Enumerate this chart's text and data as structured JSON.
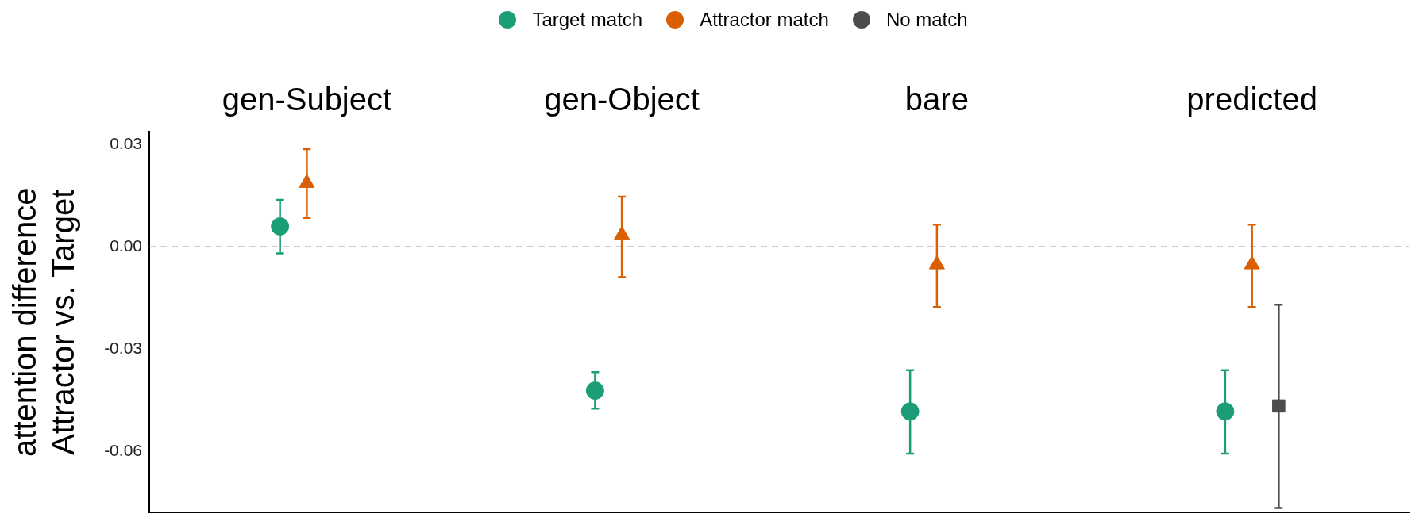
{
  "chart_data": {
    "type": "scatter",
    "ylabel": "attention difference\nAttractor vs. Target",
    "categories": [
      "gen-Subject",
      "gen-Object",
      "bare",
      "predicted"
    ],
    "ylim": [
      -0.078,
      0.0338
    ],
    "yticks": [
      {
        "value": 0.03,
        "label": "0.03"
      },
      {
        "value": 0,
        "label": "0.00"
      },
      {
        "value": -0.03,
        "label": "-0.03"
      },
      {
        "value": -0.06,
        "label": "-0.06"
      }
    ],
    "legend": "top",
    "ref_lines": [
      {
        "axis": "y",
        "value": 0,
        "color": "#999999",
        "line_style": "dashed"
      }
    ],
    "series": [
      {
        "name": "Target match",
        "color": "#1b9e77",
        "marker": "circle",
        "values": [
          0.006,
          -0.0422,
          -0.0483,
          -0.0483
        ],
        "errors": [
          [
            -0.0019,
            0.0138
          ],
          [
            -0.0475,
            -0.0368
          ],
          [
            -0.0607,
            -0.0362
          ],
          [
            -0.0607,
            -0.0362
          ]
        ]
      },
      {
        "name": "Attractor match",
        "color": "#d95f02",
        "marker": "triangle",
        "values": [
          0.0187,
          0.0035,
          -0.0052,
          -0.0052
        ],
        "errors": [
          [
            0.0085,
            0.0287
          ],
          [
            -0.0089,
            0.0147
          ],
          [
            -0.0177,
            0.0065
          ],
          [
            -0.0177,
            0.0065
          ]
        ]
      },
      {
        "name": "No match",
        "color": "#4d4d4d",
        "marker": "square",
        "values": [
          null,
          null,
          null,
          -0.0467
        ],
        "errors": [
          null,
          null,
          null,
          [
            -0.0766,
            -0.017
          ]
        ]
      }
    ]
  }
}
